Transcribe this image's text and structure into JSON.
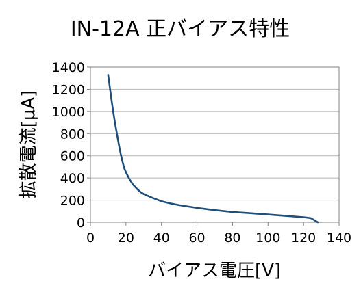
{
  "chart_data": {
    "type": "line",
    "title": "IN-12A 正バイアス特性",
    "xlabel": "バイアス電圧[V]",
    "ylabel": "拡散電流[μA]",
    "xlim": [
      0,
      140
    ],
    "ylim": [
      0,
      1400
    ],
    "xticks": [
      0,
      20,
      40,
      60,
      80,
      100,
      120,
      140
    ],
    "yticks": [
      0,
      200,
      400,
      600,
      800,
      1000,
      1200,
      1400
    ],
    "grid": "horizontal",
    "legend": "none",
    "series": [
      {
        "color": "#1f4e79",
        "x": [
          10,
          11,
          12,
          13,
          14,
          15,
          16,
          17,
          18,
          19,
          20,
          22,
          24,
          26,
          28,
          30,
          35,
          40,
          45,
          50,
          60,
          70,
          80,
          90,
          100,
          110,
          120,
          124,
          126,
          128
        ],
        "y": [
          1330,
          1210,
          1090,
          980,
          880,
          790,
          700,
          620,
          550,
          490,
          450,
          390,
          340,
          305,
          275,
          255,
          220,
          190,
          170,
          155,
          130,
          110,
          93,
          82,
          70,
          58,
          46,
          38,
          20,
          0
        ]
      }
    ]
  }
}
